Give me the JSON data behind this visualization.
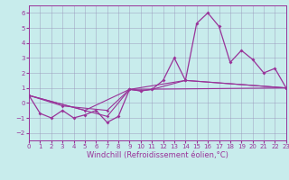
{
  "xlabel": "Windchill (Refroidissement éolien,°C)",
  "bg_color": "#c8ecec",
  "line_color": "#993399",
  "xlim": [
    0,
    23
  ],
  "ylim": [
    -2.5,
    6.5
  ],
  "xticks": [
    0,
    1,
    2,
    3,
    4,
    5,
    6,
    7,
    8,
    9,
    10,
    11,
    12,
    13,
    14,
    15,
    16,
    17,
    18,
    19,
    20,
    21,
    22,
    23
  ],
  "yticks": [
    -2,
    -1,
    0,
    1,
    2,
    3,
    4,
    5,
    6
  ],
  "series1_x": [
    0,
    1,
    2,
    3,
    4,
    5,
    6,
    7,
    8,
    9,
    10,
    11,
    12,
    13,
    14,
    15,
    16,
    17,
    18,
    19,
    20,
    21,
    22,
    23
  ],
  "series1_y": [
    0.5,
    -0.7,
    -1.0,
    -0.5,
    -1.0,
    -0.8,
    -0.5,
    -1.3,
    -0.9,
    0.9,
    0.8,
    0.9,
    1.5,
    3.0,
    1.5,
    5.3,
    6.0,
    5.1,
    2.7,
    3.5,
    2.9,
    2.0,
    2.3,
    1.0
  ],
  "series2_x": [
    0,
    7,
    9,
    10,
    11,
    14,
    23
  ],
  "series2_y": [
    0.5,
    -0.9,
    0.9,
    0.8,
    0.9,
    1.5,
    1.0
  ],
  "series3_x": [
    0,
    5,
    9,
    14,
    23
  ],
  "series3_y": [
    0.5,
    -0.5,
    0.9,
    1.5,
    1.0
  ],
  "series4_x": [
    0,
    3,
    7,
    9,
    23
  ],
  "series4_y": [
    0.5,
    -0.2,
    -0.5,
    0.9,
    1.0
  ],
  "grid_color": "#9999bb",
  "title_fontsize": 6,
  "xlabel_fontsize": 6,
  "tick_fontsize": 5
}
